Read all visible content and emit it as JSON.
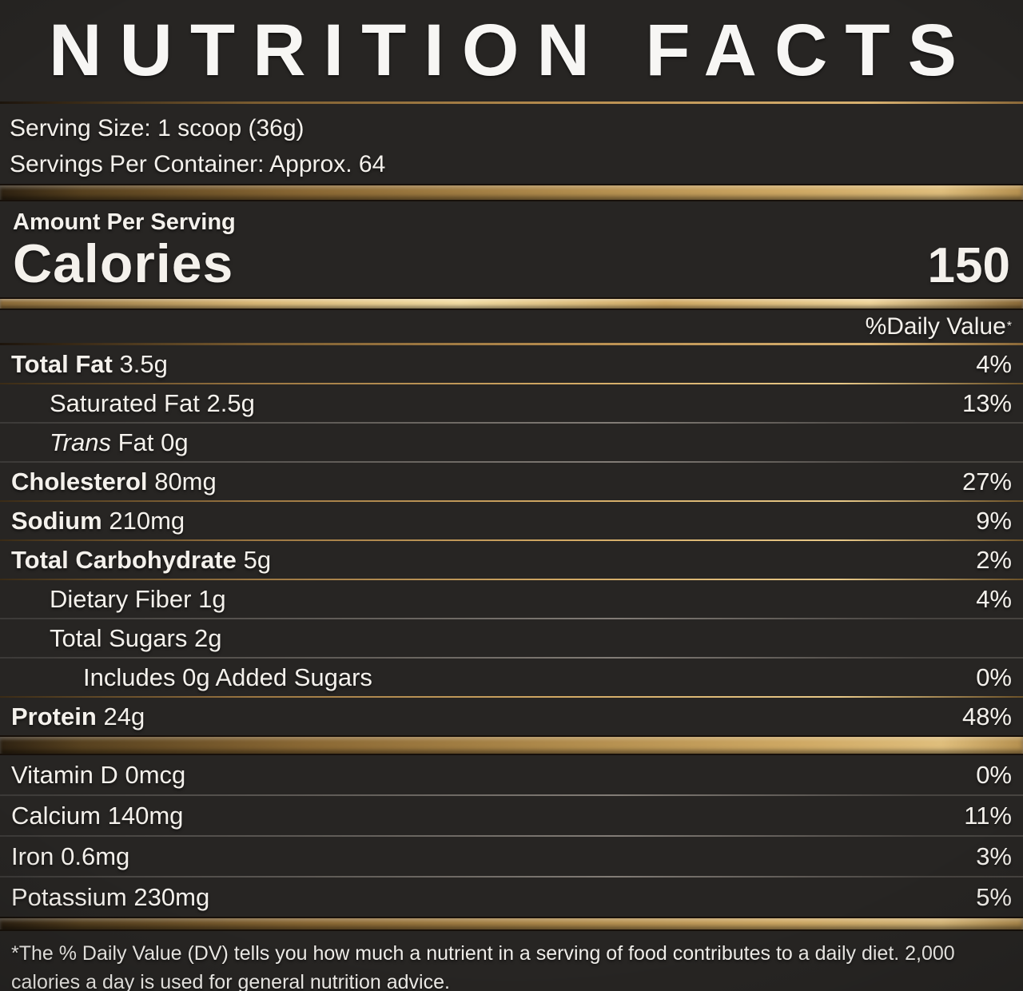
{
  "title": "NUTRITION FACTS",
  "serving": {
    "size": "Serving Size: 1 scoop (36g)",
    "per_container": "Servings Per Container: Approx. 64"
  },
  "calories": {
    "amount_per_serving": "Amount Per Serving",
    "label": "Calories",
    "value": "150"
  },
  "daily_value": {
    "header": "%Daily Value",
    "marker": "*"
  },
  "nutrients": [
    {
      "label": "Total Fat",
      "amount": "3.5g",
      "dv": "4%"
    },
    {
      "label": "Saturated Fat",
      "amount": "2.5g",
      "dv": "13%"
    },
    {
      "label_italic": "Trans",
      "label": "Fat",
      "amount": "0g",
      "dv": ""
    },
    {
      "label": "Cholesterol",
      "amount": "80mg",
      "dv": "27%"
    },
    {
      "label": "Sodium",
      "amount": "210mg",
      "dv": "9%"
    },
    {
      "label": "Total Carbohydrate",
      "amount": "5g",
      "dv": "2%"
    },
    {
      "label": "Dietary Fiber",
      "amount": "1g",
      "dv": "4%"
    },
    {
      "label": "Total Sugars",
      "amount": "2g",
      "dv": ""
    },
    {
      "label": "Includes 0g Added Sugars",
      "amount": "",
      "dv": "0%"
    },
    {
      "label": "Protein",
      "amount": "24g",
      "dv": "48%"
    }
  ],
  "micronutrients": [
    {
      "label": "Vitamin D",
      "amount": "0mcg",
      "dv": "0%"
    },
    {
      "label": "Calcium",
      "amount": "140mg",
      "dv": "11%"
    },
    {
      "label": "Iron",
      "amount": "0.6mg",
      "dv": "3%"
    },
    {
      "label": "Potassium",
      "amount": "230mg",
      "dv": "5%"
    }
  ],
  "footnote": "*The % Daily Value (DV) tells you how much a nutrient in a serving of food contributes to a daily diet. 2,000 calories a day is used for general nutrition advice.",
  "colors": {
    "background": "#272523",
    "text": "#f4f1ec",
    "gold_light": "#e8c988",
    "gold_dark": "#57411f"
  }
}
